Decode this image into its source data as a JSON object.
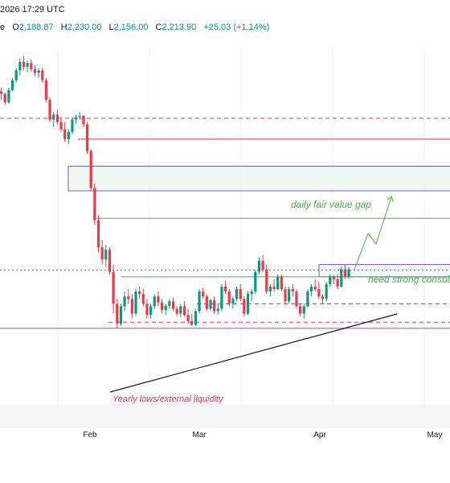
{
  "header": {
    "datetime": "2026 17:29 UTC",
    "series_letter": "e",
    "open_key": "O",
    "open": "2,188.87",
    "high_key": "H",
    "high": "2,230.00",
    "low_key": "L",
    "low": "2,156.00",
    "close_key": "C",
    "close": "2,213.90",
    "change": "+25.03 (+1.14%)"
  },
  "colors": {
    "up": "#089981",
    "down": "#f23645",
    "fvg_fill": "#e8f5e9",
    "fvg_border": "#7e57c2",
    "annotation_green": "#4caf50",
    "trendline": "#131722",
    "grid": "#f0f3fa"
  },
  "chart_data": {
    "type": "candlestick",
    "x_axis_labels": [
      "Feb",
      "Mar",
      "Apr",
      "May"
    ],
    "ylim": [
      1140,
      2680
    ],
    "candles": [
      [
        2505,
        2520,
        2470,
        2495
      ],
      [
        2495,
        2500,
        2450,
        2460
      ],
      [
        2460,
        2520,
        2455,
        2510
      ],
      [
        2510,
        2560,
        2505,
        2550
      ],
      [
        2550,
        2600,
        2540,
        2590
      ],
      [
        2590,
        2640,
        2570,
        2625
      ],
      [
        2625,
        2650,
        2590,
        2605
      ],
      [
        2605,
        2630,
        2585,
        2620
      ],
      [
        2620,
        2635,
        2585,
        2595
      ],
      [
        2595,
        2610,
        2565,
        2580
      ],
      [
        2580,
        2600,
        2560,
        2590
      ],
      [
        2590,
        2600,
        2540,
        2550
      ],
      [
        2550,
        2560,
        2460,
        2470
      ],
      [
        2470,
        2480,
        2380,
        2390
      ],
      [
        2390,
        2420,
        2360,
        2410
      ],
      [
        2410,
        2430,
        2370,
        2380
      ],
      [
        2380,
        2400,
        2340,
        2350
      ],
      [
        2350,
        2380,
        2300,
        2310
      ],
      [
        2310,
        2350,
        2290,
        2340
      ],
      [
        2340,
        2400,
        2330,
        2390
      ],
      [
        2390,
        2410,
        2370,
        2400
      ],
      [
        2400,
        2420,
        2390,
        2405
      ],
      [
        2405,
        2410,
        2360,
        2370
      ],
      [
        2370,
        2380,
        2250,
        2262
      ],
      [
        2262,
        2270,
        2100,
        2112
      ],
      [
        2112,
        2130,
        1960,
        1980
      ],
      [
        1980,
        2000,
        1850,
        1870
      ],
      [
        1870,
        1900,
        1800,
        1820
      ],
      [
        1820,
        1880,
        1790,
        1860
      ],
      [
        1860,
        1870,
        1760,
        1770
      ],
      [
        1770,
        1800,
        1600,
        1640
      ],
      [
        1640,
        1660,
        1540,
        1560
      ],
      [
        1560,
        1640,
        1550,
        1630
      ],
      [
        1630,
        1690,
        1610,
        1670
      ],
      [
        1670,
        1700,
        1640,
        1660
      ],
      [
        1660,
        1680,
        1580,
        1600
      ],
      [
        1600,
        1700,
        1590,
        1690
      ],
      [
        1690,
        1710,
        1660,
        1680
      ],
      [
        1680,
        1700,
        1630,
        1640
      ],
      [
        1640,
        1660,
        1580,
        1595
      ],
      [
        1595,
        1640,
        1580,
        1630
      ],
      [
        1630,
        1680,
        1620,
        1670
      ],
      [
        1670,
        1690,
        1630,
        1645
      ],
      [
        1645,
        1660,
        1600,
        1615
      ],
      [
        1615,
        1640,
        1595,
        1632
      ],
      [
        1632,
        1660,
        1620,
        1650
      ],
      [
        1650,
        1665,
        1610,
        1620
      ],
      [
        1620,
        1630,
        1590,
        1600
      ],
      [
        1600,
        1640,
        1585,
        1630
      ],
      [
        1630,
        1650,
        1590,
        1595
      ],
      [
        1595,
        1620,
        1560,
        1570
      ],
      [
        1570,
        1600,
        1550,
        1555
      ],
      [
        1555,
        1620,
        1550,
        1610
      ],
      [
        1610,
        1700,
        1600,
        1690
      ],
      [
        1690,
        1705,
        1660,
        1670
      ],
      [
        1670,
        1680,
        1610,
        1620
      ],
      [
        1620,
        1660,
        1610,
        1655
      ],
      [
        1655,
        1670,
        1600,
        1610
      ],
      [
        1610,
        1640,
        1595,
        1620
      ],
      [
        1620,
        1720,
        1610,
        1710
      ],
      [
        1710,
        1735,
        1680,
        1690
      ],
      [
        1690,
        1700,
        1630,
        1640
      ],
      [
        1640,
        1670,
        1620,
        1660
      ],
      [
        1660,
        1710,
        1650,
        1700
      ],
      [
        1700,
        1720,
        1650,
        1660
      ],
      [
        1660,
        1670,
        1590,
        1600
      ],
      [
        1600,
        1690,
        1595,
        1680
      ],
      [
        1680,
        1700,
        1650,
        1690
      ],
      [
        1690,
        1780,
        1680,
        1770
      ],
      [
        1770,
        1830,
        1760,
        1815
      ],
      [
        1815,
        1840,
        1770,
        1780
      ],
      [
        1780,
        1800,
        1680,
        1690
      ],
      [
        1690,
        1720,
        1670,
        1710
      ],
      [
        1710,
        1740,
        1690,
        1700
      ],
      [
        1700,
        1760,
        1695,
        1750
      ],
      [
        1750,
        1760,
        1690,
        1700
      ],
      [
        1700,
        1710,
        1640,
        1650
      ],
      [
        1650,
        1710,
        1640,
        1700
      ],
      [
        1700,
        1720,
        1670,
        1690
      ],
      [
        1690,
        1700,
        1620,
        1630
      ],
      [
        1630,
        1640,
        1590,
        1600
      ],
      [
        1600,
        1640,
        1580,
        1630
      ],
      [
        1630,
        1700,
        1625,
        1690
      ],
      [
        1690,
        1720,
        1670,
        1710
      ],
      [
        1710,
        1740,
        1690,
        1700
      ],
      [
        1700,
        1730,
        1660,
        1670
      ],
      [
        1670,
        1680,
        1640,
        1660
      ],
      [
        1660,
        1730,
        1650,
        1720
      ],
      [
        1720,
        1760,
        1710,
        1752
      ],
      [
        1752,
        1755,
        1720,
        1740
      ],
      [
        1740,
        1760,
        1700,
        1710
      ],
      [
        1710,
        1790,
        1705,
        1780
      ],
      [
        1780,
        1800,
        1740,
        1750
      ],
      [
        1750,
        1790,
        1740,
        1780
      ]
    ],
    "horizontal_levels": [
      {
        "price": 2395,
        "style": "dashed",
        "color": "#f23645"
      },
      {
        "price": 2310,
        "style": "solid",
        "color": "#f23645"
      },
      {
        "price": 1988,
        "style": "solid",
        "color": "#4caf50"
      },
      {
        "price": 1777,
        "style": "dotted",
        "color": "#089981"
      },
      {
        "price": 1750,
        "style": "solid",
        "color": "#4caf50"
      },
      {
        "price": 1640,
        "style": "dashed",
        "color": "#2962ff"
      },
      {
        "price": 1565,
        "style": "dashed",
        "color": "#f23645"
      },
      {
        "price": 1540,
        "style": "solid",
        "color": "#7e57c2"
      }
    ],
    "zones": [
      {
        "label": "daily fair value gap",
        "top": 2200,
        "bottom": 2100
      },
      {
        "label": "need strong consolidation",
        "top": 1800,
        "bottom": 1750
      }
    ],
    "annotations": [
      "daily fair value gap",
      "need strong consolidation",
      "Yearly lows/external liquidity"
    ]
  }
}
